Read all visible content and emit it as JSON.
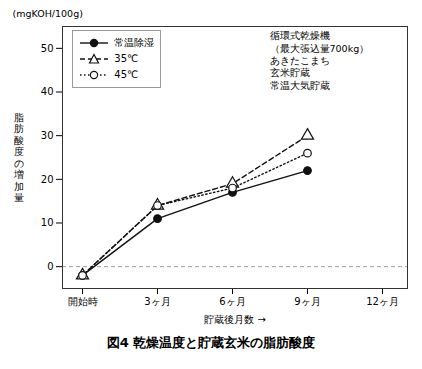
{
  "chart_data": {
    "type": "line",
    "title": "図4   乾燥温度と貯蔵玄米の脂肪酸度",
    "xlabel": "貯蔵後月数",
    "ylabel": "脂肪酸度の増加量",
    "annotations": [
      "(mgKOH/100g)",
      "循環式乾燥機\n（最大張込量700kg）\nあきたこまち\n玄米貯蔵\n常温大気貯蔵"
    ],
    "x": [
      0,
      3,
      6,
      9
    ],
    "series": [
      {
        "name": "常温除湿",
        "color": "#111111",
        "values": [
          -2,
          11,
          17,
          22
        ],
        "marker": "circle",
        "line_style": "solid"
      },
      {
        "name": "35℃",
        "color": "#111111",
        "values": [
          -2,
          14,
          19,
          30
        ],
        "marker": "triangle-open",
        "line_style": "dashed"
      },
      {
        "name": "45℃",
        "color": "#111111",
        "values": [
          -2,
          14,
          18,
          26
        ],
        "marker": "circle-open",
        "line_style": "dotted"
      }
    ],
    "xlim": [
      -0.8,
      13
    ],
    "xticks": [
      {
        "value": 0,
        "label": "開始時"
      },
      {
        "value": 3,
        "label": "3ヶ月"
      },
      {
        "value": 6,
        "label": "6ヶ月"
      },
      {
        "value": 9,
        "label": "9ヶ月"
      },
      {
        "value": 12,
        "label": "12ヶ月"
      }
    ],
    "ylim": [
      -5,
      55
    ],
    "yticks": [
      0,
      10,
      20,
      30,
      40,
      50
    ],
    "hline": 0,
    "legend": "upper left",
    "grid": false
  }
}
